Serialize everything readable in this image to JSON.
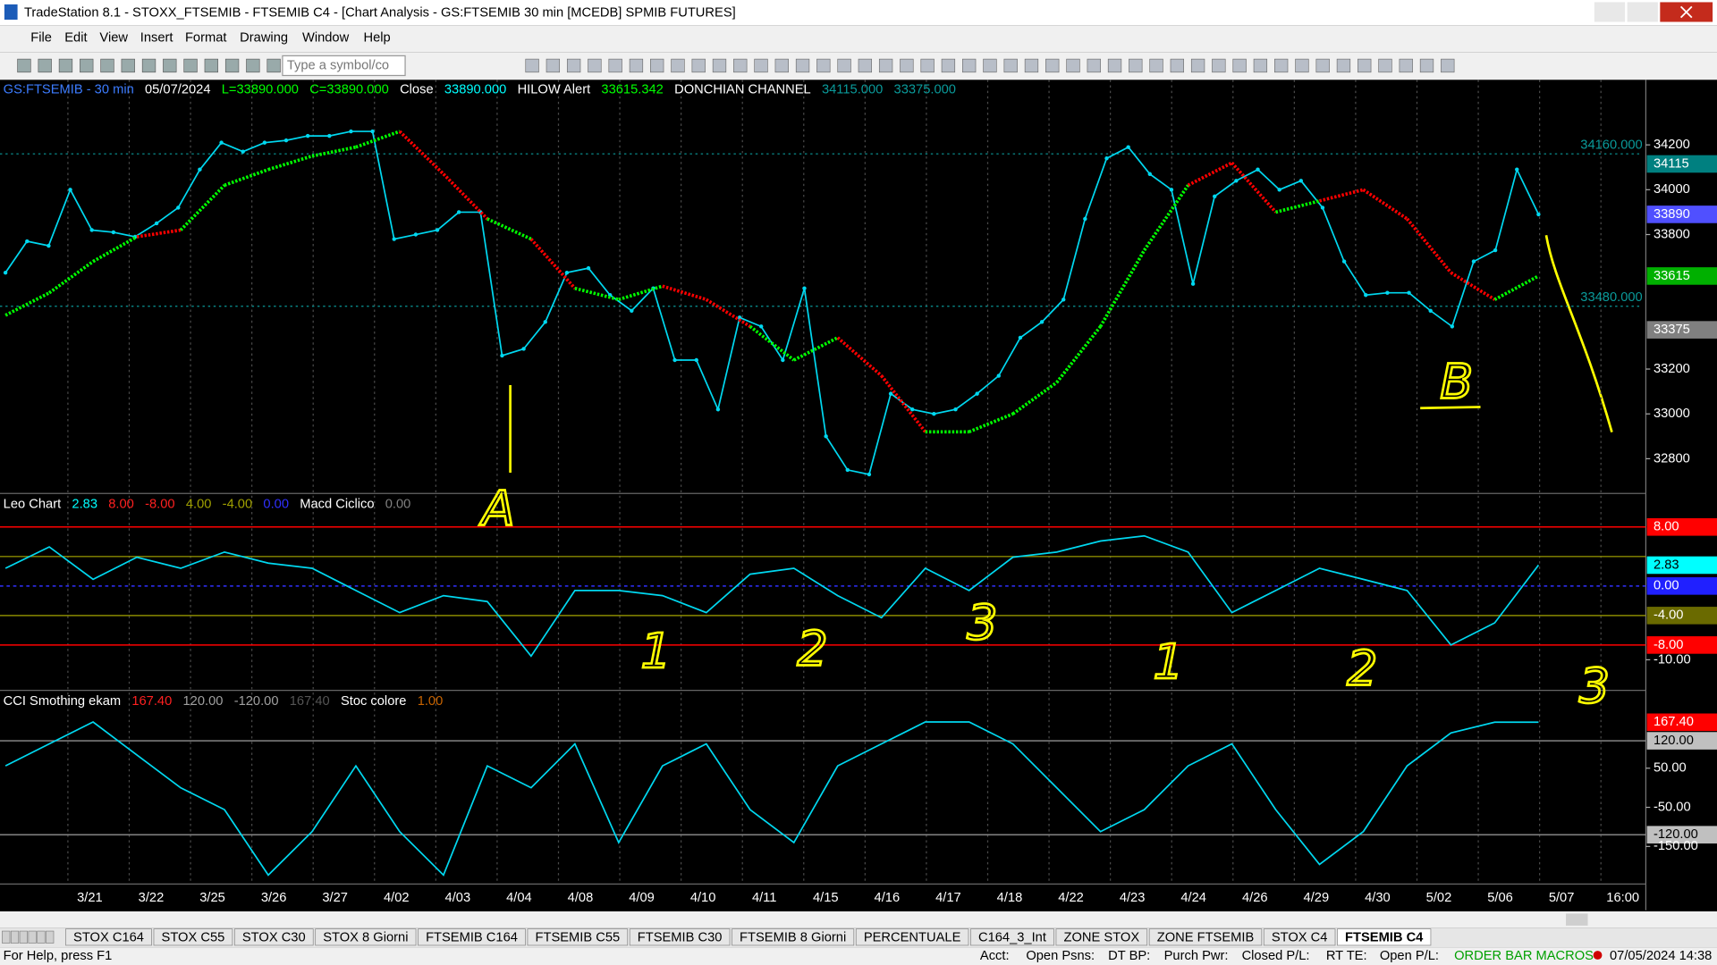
{
  "window": {
    "title": "TradeStation 8.1 - STOXX_FTSEMIB - FTSEMIB C4 - [Chart Analysis - GS:FTSEMIB  30 min  [MCEDB] SPMIB FUTURES]"
  },
  "menu": [
    "File",
    "Edit",
    "View",
    "Insert",
    "Format",
    "Drawing",
    "Window",
    "Help"
  ],
  "toolbar": {
    "symbol_placeholder": "Type a symbol/co"
  },
  "chart_data": [
    {
      "type": "line",
      "header": [
        {
          "text": "GS:FTSEMIB - 30 min",
          "color": "#3c7cff"
        },
        {
          "text": "05/07/2024",
          "color": "#ffffff"
        },
        {
          "text": "L=33890.000",
          "color": "#00ff00"
        },
        {
          "text": "C=33890.000",
          "color": "#00ff00"
        },
        {
          "text": "Close",
          "color": "#ffffff"
        },
        {
          "text": "33890.000",
          "color": "#00ffff"
        },
        {
          "text": "HILOW Alert",
          "color": "#ffffff"
        },
        {
          "text": "33615.342",
          "color": "#00ff00"
        },
        {
          "text": "DONCHIAN CHANNEL",
          "color": "#ffffff"
        },
        {
          "text": "34115.000",
          "color": "#0a9a9a"
        },
        {
          "text": "33375.000",
          "color": "#0a9a9a"
        }
      ],
      "ylim": [
        32650,
        34490
      ],
      "yticks": [
        34200,
        34000,
        33800,
        33200,
        33000,
        32800,
        {
          "value": 34115,
          "bg": "#008080"
        },
        {
          "value": 33890,
          "bg": "#5050ff"
        },
        {
          "value": 33615,
          "bg": "#00b000"
        },
        {
          "value": 33375,
          "bg": "#808080"
        }
      ],
      "price_lines": [
        {
          "value": 34160,
          "label": "34160.000",
          "color": "#0a9a9a"
        },
        {
          "value": 33480,
          "label": "33480.000",
          "color": "#0a9a9a"
        }
      ],
      "series": [
        {
          "color": "#00d8f0",
          "values": [
            33630,
            33770,
            33750,
            34000,
            33820,
            33810,
            33790,
            33850,
            33920,
            34090,
            34210,
            34170,
            34210,
            34220,
            34240,
            34240,
            34260,
            34260,
            33780,
            33800,
            33820,
            33900,
            33900,
            33260,
            33290,
            33410,
            33630,
            33650,
            33530,
            33460,
            33560,
            33240,
            33240,
            33020,
            33430,
            33390,
            33240,
            33560,
            32900,
            32750,
            32730,
            33090,
            33020,
            33000,
            33020,
            33090,
            33170,
            33340,
            33410,
            33510,
            33870,
            34140,
            34190,
            34070,
            34000,
            33580,
            33970,
            34040,
            34090,
            34000,
            34040,
            33920,
            33680,
            33530,
            33540,
            33540,
            33460,
            33390,
            33680,
            33730,
            34090,
            33890
          ]
        },
        {
          "colors": {
            "below": "#00ff00",
            "above": "#ff0000"
          },
          "values": [
            33440,
            33540,
            33680,
            33790,
            33820,
            34020,
            34090,
            34150,
            34190,
            34260,
            34070,
            33870,
            33780,
            33560,
            33510,
            33570,
            33510,
            33390,
            33240,
            33340,
            33170,
            32920,
            32920,
            33000,
            33140,
            33390,
            33730,
            34020,
            34120,
            33900,
            33950,
            34000,
            33870,
            33630,
            33510,
            33615
          ]
        }
      ]
    },
    {
      "type": "line",
      "header": [
        {
          "text": "Leo Chart",
          "color": "#ffffff"
        },
        {
          "text": "2.83",
          "color": "#00ffff"
        },
        {
          "text": "8.00",
          "color": "#ff2020"
        },
        {
          "text": "-8.00",
          "color": "#ff2020"
        },
        {
          "text": "4.00",
          "color": "#a0a000"
        },
        {
          "text": "-4.00",
          "color": "#a0a000"
        },
        {
          "text": "0.00",
          "color": "#3030ff"
        },
        {
          "text": "Macd Ciclico",
          "color": "#ffffff"
        },
        {
          "text": "0.00",
          "color": "#808080"
        }
      ],
      "ylim": [
        -14,
        12.4
      ],
      "levels": [
        {
          "value": 8,
          "color": "#ff0000"
        },
        {
          "value": 4,
          "color": "#8a8a00"
        },
        {
          "value": 0,
          "color": "#3030ff",
          "dash": true
        },
        {
          "value": -4,
          "color": "#8a8a00"
        },
        {
          "value": -8,
          "color": "#ff0000"
        }
      ],
      "yticks": [
        {
          "value": 8,
          "label": "8.00",
          "bg": "#ff0000"
        },
        {
          "value": 2.83,
          "label": "2.83",
          "bg": "#00ffff",
          "fg": "#000000"
        },
        {
          "value": 0,
          "label": "0.00",
          "bg": "#2020ff"
        },
        {
          "value": -4,
          "label": "-4.00",
          "bg": "#6a6a00"
        },
        {
          "value": -8,
          "label": "-8.00",
          "bg": "#ff0000"
        },
        {
          "value": -10,
          "label": "-10.00"
        }
      ],
      "series": [
        {
          "color": "#00d8f0",
          "values": [
            2.4,
            5.3,
            0.9,
            3.9,
            2.4,
            4.6,
            3.1,
            2.4,
            -0.6,
            -3.6,
            -1.3,
            -2.1,
            -9.5,
            -0.6,
            -0.6,
            -1.3,
            -3.6,
            1.6,
            2.4,
            -1.3,
            -4.3,
            2.4,
            -0.6,
            3.9,
            4.6,
            6.1,
            6.8,
            4.6,
            -3.6,
            -0.6,
            2.4,
            0.9,
            -0.6,
            -8,
            -5,
            2.83
          ]
        }
      ]
    },
    {
      "type": "line",
      "header": [
        {
          "text": "CCI Smothing ekam",
          "color": "#ffffff"
        },
        {
          "text": "167.40",
          "color": "#ff2020"
        },
        {
          "text": "120.00",
          "color": "#a0a0a0"
        },
        {
          "text": "-120.00",
          "color": "#a0a0a0"
        },
        {
          "text": "167.40",
          "color": "#555555"
        },
        {
          "text": "Stoc colore",
          "color": "#ffffff"
        },
        {
          "text": "1.00",
          "color": "#c86400"
        }
      ],
      "ylim": [
        -246,
        246
      ],
      "levels": [
        {
          "value": 120,
          "color": "#909090"
        },
        {
          "value": -120,
          "color": "#909090"
        }
      ],
      "yticks": [
        {
          "value": 167.4,
          "label": "167.40",
          "bg": "#ff0000"
        },
        {
          "value": 120,
          "label": "120.00",
          "bg": "#c0c0c0",
          "fg": "#000000"
        },
        {
          "value": 50,
          "label": "50.00"
        },
        {
          "value": -50,
          "label": "-50.00"
        },
        {
          "value": -120,
          "label": "-120.00",
          "bg": "#c0c0c0",
          "fg": "#000000"
        },
        {
          "value": -150,
          "label": "-150.00"
        }
      ],
      "series": [
        {
          "color": "#00d8f0",
          "values": [
            56,
            112,
            168,
            84,
            0,
            -56,
            -223,
            -112,
            56,
            -112,
            -223,
            56,
            0,
            112,
            -140,
            56,
            112,
            -56,
            -140,
            56,
            112,
            168,
            168,
            112,
            0,
            -112,
            -56,
            56,
            112,
            -56,
            -196,
            -112,
            56,
            140,
            167.4,
            167.4
          ]
        }
      ]
    }
  ],
  "time_axis": {
    "labels": [
      "3/21",
      "3/22",
      "3/25",
      "3/26",
      "3/27",
      "4/02",
      "4/03",
      "4/04",
      "4/08",
      "4/09",
      "4/10",
      "4/11",
      "4/15",
      "4/16",
      "4/17",
      "4/18",
      "4/22",
      "4/23",
      "4/24",
      "4/26",
      "4/29",
      "4/30",
      "5/02",
      "5/06",
      "5/07",
      "16:00"
    ]
  },
  "annotations": [
    "A",
    "1",
    "2",
    "3",
    "1",
    "2",
    "3",
    "B"
  ],
  "tabs": {
    "items": [
      "STOX C164",
      "STOX C55",
      "STOX  C30",
      "STOX  8 Giorni",
      "FTSEMIB C164",
      "FTSEMIB C55",
      "FTSEMIB C30",
      "FTSEMIB  8 Giorni",
      "PERCENTUALE",
      "C164_3_Int",
      "ZONE STOX",
      "ZONE FTSEMIB",
      "STOX  C4",
      "FTSEMIB C4"
    ],
    "active": 13
  },
  "status_bar": {
    "items": [
      "For Help, press F1",
      "Acct:",
      "Open Psns:",
      "DT BP:",
      "Purch Pwr:",
      "Closed P/L:",
      "RT TE:",
      "Open P/L:",
      "ORDER BAR  MACROS",
      "07/05/2024 14:38"
    ]
  }
}
